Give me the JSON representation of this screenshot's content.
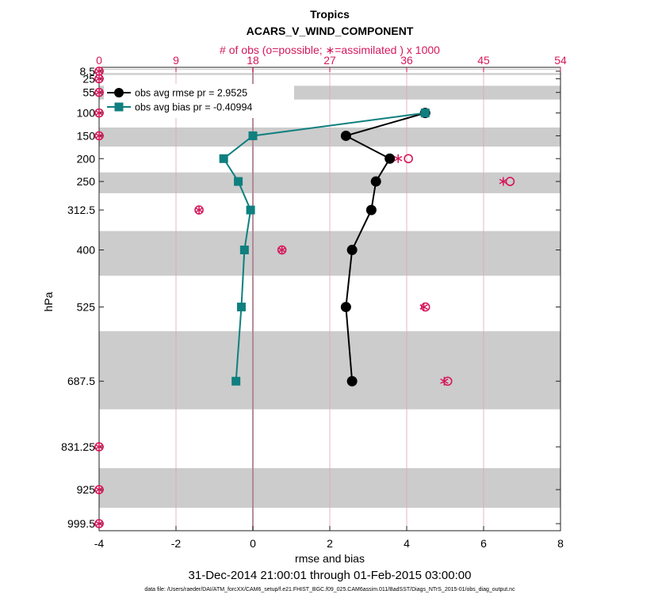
{
  "chart_data": {
    "type": "line",
    "title": "Tropics",
    "subtitle": "ACARS_V_WIND_COMPONENT",
    "top_axis_label": "# of obs (o=possible; ∗=assimilated ) x 1000",
    "xlabel": "rmse and bias",
    "ylabel": "hPa",
    "date_range": "31-Dec-2014 21:00:01 through 01-Feb-2015 03:00:00",
    "data_file": "data file: /Users/raeder/DAI/ATM_forcXX/CAM6_setup/f.e21.FHIST_BGC.f09_025.CAM6assim.011/BadSST/Diags_NTrS_2015-01/obs_diag_output.nc",
    "xlim": [
      -4,
      8
    ],
    "xticks": [
      -4,
      -2,
      0,
      2,
      4,
      6,
      8
    ],
    "top_xlim": [
      0,
      54
    ],
    "top_xticks": [
      0,
      9,
      18,
      27,
      36,
      45,
      54
    ],
    "ylim": [
      1015,
      0
    ],
    "yticks": [
      8.5,
      25,
      55,
      100,
      150,
      200,
      250,
      312.5,
      400,
      525,
      687.5,
      831.25,
      925,
      999.5
    ],
    "ytick_labels": [
      "8.5",
      "25",
      "55",
      "100",
      "150",
      "200",
      "250",
      "312.5",
      "400",
      "525",
      "687.5",
      "831.25",
      "925",
      "999.5"
    ],
    "shaded_bands": [
      [
        3.4,
        5.5
      ],
      [
        12.6,
        16.6
      ],
      [
        40.4,
        70.5
      ],
      [
        131.8,
        173.5
      ],
      [
        230.2,
        275.8
      ],
      [
        358.6,
        456.4
      ],
      [
        578,
        749.1
      ],
      [
        878,
        964.8
      ]
    ],
    "series": [
      {
        "name": "obs avg rmse pr = 2.9525",
        "color": "#000000",
        "marker": "circle",
        "levels": [
          100,
          150,
          200,
          250,
          312.5,
          400,
          525,
          687.5
        ],
        "values": [
          4.48,
          2.42,
          3.56,
          3.2,
          3.08,
          2.58,
          2.42,
          2.58
        ]
      },
      {
        "name": "obs avg bias pr = -0.40994",
        "color": "#0f7f7f",
        "marker": "square",
        "levels": [
          100,
          150,
          200,
          250,
          312.5,
          400,
          525,
          687.5
        ],
        "values": [
          4.48,
          0.0,
          -0.76,
          -0.38,
          -0.06,
          -0.22,
          -0.3,
          -0.44
        ]
      }
    ],
    "obs_counts": {
      "levels": [
        8.5,
        25,
        55,
        100,
        150,
        200,
        250,
        312.5,
        400,
        525,
        687.5,
        831.25,
        925,
        999.5
      ],
      "possible": [
        0,
        0,
        0,
        0,
        0,
        36.2,
        48.1,
        11.7,
        21.4,
        38.2,
        40.8,
        0,
        0,
        0
      ],
      "assimilated": [
        0,
        0,
        0,
        0,
        0,
        35.0,
        47.3,
        11.7,
        21.4,
        38.0,
        40.4,
        0,
        0,
        0
      ]
    }
  }
}
